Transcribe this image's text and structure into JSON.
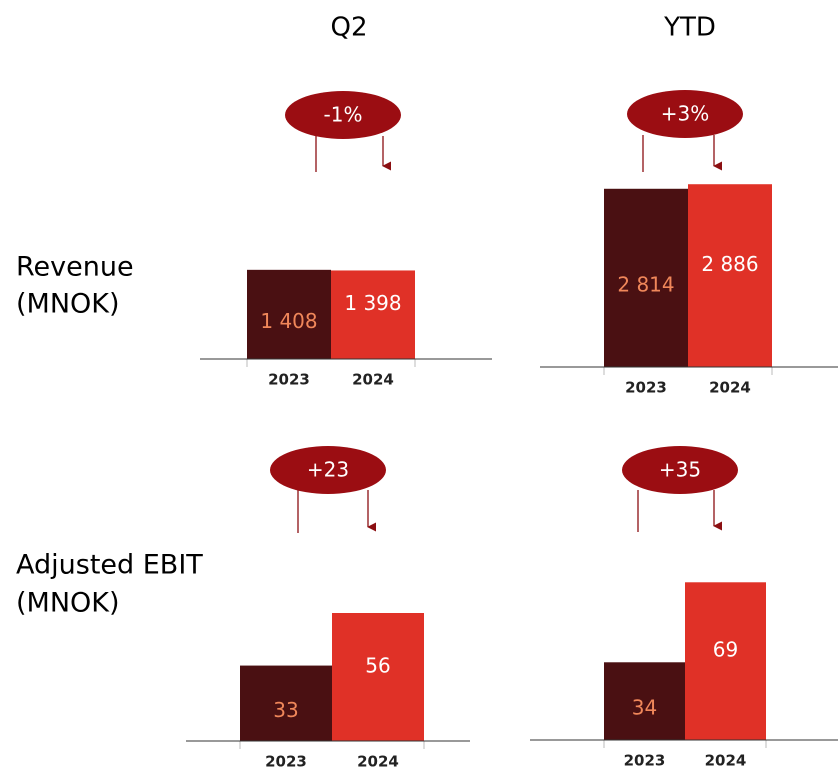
{
  "column_titles": [
    "Q2",
    "YTD"
  ],
  "row_labels": [
    [
      "Revenue",
      "(MNOK)"
    ],
    [
      "Adjusted EBIT",
      "(MNOK)"
    ]
  ],
  "chart_data": [
    {
      "type": "bar",
      "categories": [
        "2023",
        "2024"
      ],
      "values": [
        1408,
        1398
      ],
      "value_labels": [
        "1 408",
        "1 398"
      ],
      "colors": [
        "#4a1012",
        "#e03127"
      ],
      "ylim": [
        0,
        3000
      ],
      "annotation": "-1%"
    },
    {
      "type": "bar",
      "categories": [
        "2023",
        "2024"
      ],
      "values": [
        2814,
        2886
      ],
      "value_labels": [
        "2 814",
        "2 886"
      ],
      "colors": [
        "#4a1012",
        "#e03127"
      ],
      "ylim": [
        0,
        3000
      ],
      "annotation": "+3%"
    },
    {
      "type": "bar",
      "categories": [
        "2023",
        "2024"
      ],
      "values": [
        33,
        56
      ],
      "colors": [
        "#4a1012",
        "#e03127"
      ],
      "ylim": [
        0,
        70
      ],
      "annotation": "+23"
    },
    {
      "type": "bar",
      "categories": [
        "2023",
        "2024"
      ],
      "values": [
        34,
        69
      ],
      "colors": [
        "#4a1012",
        "#e03127"
      ],
      "ylim": [
        0,
        70
      ],
      "annotation": "+35"
    }
  ]
}
